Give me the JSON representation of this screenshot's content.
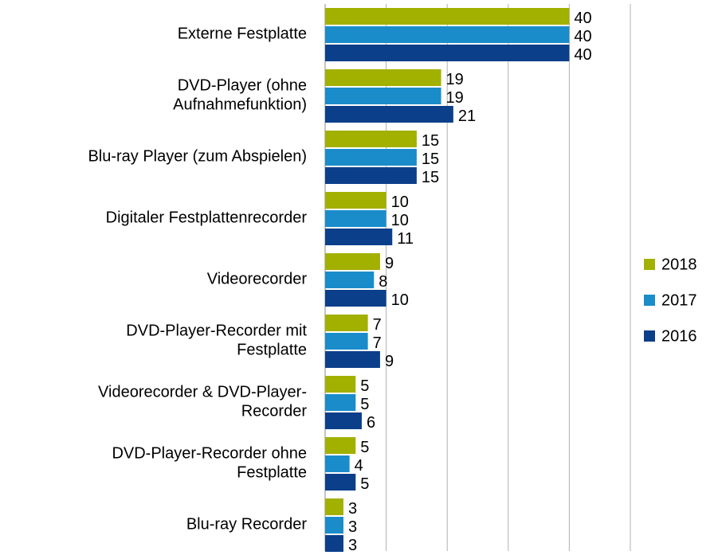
{
  "chart_data": {
    "type": "hbar",
    "categories": [
      "Externe Festplatte",
      "DVD-Player (ohne\nAufnahmefunktion)",
      "Blu-ray Player (zum Abspielen)",
      "Digitaler Festplattenrecorder",
      "Videorecorder",
      "DVD-Player-Recorder mit\nFestplatte",
      "Videorecorder & DVD-Player-\nRecorder",
      "DVD-Player-Recorder ohne\nFestplatte",
      "Blu-ray Recorder"
    ],
    "series": [
      {
        "name": "2018",
        "color": "#a2b000",
        "values": [
          40,
          19,
          15,
          10,
          9,
          7,
          5,
          5,
          3
        ]
      },
      {
        "name": "2017",
        "color": "#1a8cca",
        "values": [
          40,
          19,
          15,
          10,
          8,
          7,
          5,
          4,
          3
        ]
      },
      {
        "name": "2016",
        "color": "#0c3f89",
        "values": [
          40,
          21,
          15,
          11,
          10,
          9,
          6,
          5,
          3
        ]
      }
    ],
    "xlim": [
      0,
      50
    ],
    "xticks": [
      0,
      10,
      20,
      30,
      40,
      50
    ],
    "grid": true,
    "legend": "right"
  }
}
